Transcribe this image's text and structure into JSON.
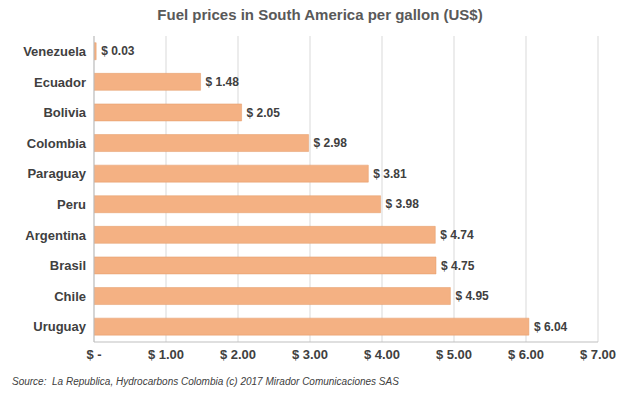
{
  "chart_data": {
    "type": "bar",
    "title": "Fuel prices in South America per gallon (US$)",
    "orientation": "horizontal",
    "categories": [
      "Venezuela",
      "Ecuador",
      "Bolivia",
      "Colombia",
      "Paraguay",
      "Peru",
      "Argentina",
      "Brasil",
      "Chile",
      "Uruguay"
    ],
    "values": [
      0.03,
      1.48,
      2.05,
      2.98,
      3.81,
      3.98,
      4.74,
      4.75,
      4.95,
      6.04
    ],
    "value_labels": [
      "$ 0.03",
      "$ 1.48",
      "$ 2.05",
      "$ 2.98",
      "$ 3.81",
      "$ 3.98",
      "$ 4.74",
      "$ 4.75",
      "$ 4.95",
      "$ 6.04"
    ],
    "data_labels": true,
    "color": "#f4b183",
    "xlim": [
      0,
      7
    ],
    "xticks": [
      {
        "value": 0,
        "label": "$ -"
      },
      {
        "value": 1,
        "label": "$ 1.00"
      },
      {
        "value": 2,
        "label": "$ 2.00"
      },
      {
        "value": 3,
        "label": "$ 3.00"
      },
      {
        "value": 4,
        "label": "$ 4.00"
      },
      {
        "value": 5,
        "label": "$ 5.00"
      },
      {
        "value": 6,
        "label": "$ 6.00"
      },
      {
        "value": 7,
        "label": "$ 7.00"
      }
    ],
    "grid": true,
    "annotations": [
      "Source:  La Republica, Hydrocarbons Colombia (c) 2017 Mirador Comunicaciones SAS"
    ]
  }
}
